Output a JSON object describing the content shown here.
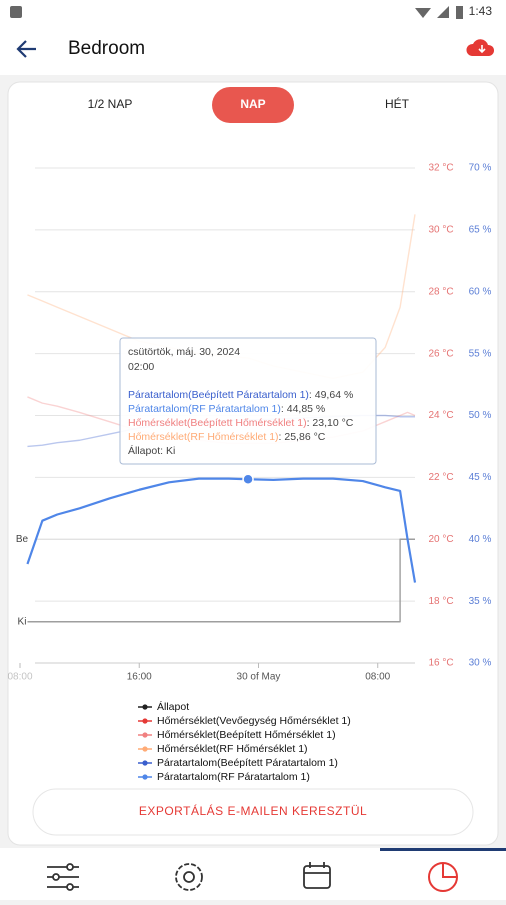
{
  "status": {
    "time": "1:43"
  },
  "header": {
    "title": "Bedroom"
  },
  "tabs": [
    {
      "label": "1/2 NAP",
      "active": false
    },
    {
      "label": "NAP",
      "active": true
    },
    {
      "label": "HÉT",
      "active": false
    }
  ],
  "chart_data": {
    "type": "line",
    "x": [
      8.5,
      9.5,
      10.5,
      12,
      14,
      16,
      18,
      20,
      22,
      23.3,
      25,
      27,
      29,
      31,
      32.5,
      33.5,
      34,
      34.5
    ],
    "xlim": [
      8,
      34.5
    ],
    "xticks": [
      {
        "value": 8,
        "label": "08:00"
      },
      {
        "value": 16,
        "label": "16:00"
      },
      {
        "value": 24,
        "label": "30 of May"
      },
      {
        "value": 32,
        "label": "08:00"
      }
    ],
    "ylim": [
      16,
      32
    ],
    "yticks": [
      {
        "value": 16,
        "label": "16 °C"
      },
      {
        "value": 18,
        "label": "18 °C"
      },
      {
        "value": 20,
        "label": "20 °C"
      },
      {
        "value": 22,
        "label": "22 °C"
      },
      {
        "value": 24,
        "label": "24 °C"
      },
      {
        "value": 26,
        "label": "26 °C"
      },
      {
        "value": 28,
        "label": "28 °C"
      },
      {
        "value": 30,
        "label": "30 °C"
      },
      {
        "value": 32,
        "label": "32 °C"
      }
    ],
    "y2lim": [
      30,
      70
    ],
    "y2ticks": [
      {
        "value": 30,
        "label": "30 %"
      },
      {
        "value": 35,
        "label": "35 %"
      },
      {
        "value": 40,
        "label": "40 %"
      },
      {
        "value": 45,
        "label": "45 %"
      },
      {
        "value": 50,
        "label": "50 %"
      },
      {
        "value": 55,
        "label": "55 %"
      },
      {
        "value": 60,
        "label": "60 %"
      },
      {
        "value": 65,
        "label": "65 %"
      },
      {
        "value": 70,
        "label": "70 %"
      }
    ],
    "y3lim": [
      -0.5,
      5.5
    ],
    "y3ticks": [
      {
        "value": 0,
        "label": "Ki"
      },
      {
        "value": 1,
        "label": "Be"
      }
    ],
    "grid": true,
    "series": [
      {
        "name": "Állapot",
        "color": "#222222",
        "axis": "y3",
        "step": true,
        "values": [
          0,
          0,
          0,
          0,
          0,
          0,
          0,
          0,
          0,
          0,
          0,
          0,
          0,
          0,
          0,
          1,
          1,
          1
        ]
      },
      {
        "name": "Hőmérséklet(Vevőegység Hőmérséklet 1)",
        "color": "#e53935",
        "axis": "y",
        "values": [
          null,
          null,
          null,
          null,
          null,
          null,
          null,
          null,
          null,
          null,
          null,
          null,
          null,
          null,
          null,
          null,
          null,
          null
        ]
      },
      {
        "name": "Hőmérséklet(Beépített Hőmérséklet 1)",
        "color": "#f08080",
        "axis": "y",
        "values": [
          24.6,
          24.4,
          24.3,
          24.1,
          23.8,
          23.5,
          23.3,
          23.2,
          23.1,
          23.1,
          23.1,
          23.2,
          23.3,
          23.5,
          23.8,
          24.0,
          24.1,
          24.0
        ]
      },
      {
        "name": "Hőmérséklet(RF Hőmérséklet 1)",
        "color": "#ffab76",
        "axis": "y",
        "values": [
          27.9,
          27.7,
          27.5,
          27.2,
          26.8,
          26.4,
          26.2,
          26.0,
          25.9,
          25.86,
          25.6,
          25.4,
          25.2,
          25.4,
          26.2,
          27.5,
          29,
          30.5
        ]
      },
      {
        "name": "Páratartalom(Beépített Páratartalom 1)",
        "color": "#3a5fcd",
        "axis": "y2",
        "values": [
          47.5,
          47.6,
          47.8,
          48,
          48.5,
          49,
          49.3,
          49.5,
          49.6,
          49.64,
          49.7,
          49.8,
          49.9,
          50,
          50,
          49.9,
          49.9,
          49.9
        ]
      },
      {
        "name": "Páratartalom(RF Páratartalom 1)",
        "color": "#4f86e8",
        "axis": "y2",
        "values": [
          38,
          41.5,
          42,
          42.5,
          43.3,
          44,
          44.6,
          44.9,
          44.9,
          44.85,
          44.8,
          44.9,
          44.9,
          44.7,
          44.2,
          43.9,
          40,
          36.5
        ]
      }
    ],
    "highlight": 9
  },
  "tooltip": {
    "date": "csütörtök, máj. 30, 2024",
    "time": "02:00",
    "lines": [
      {
        "label": "Páratartalom(Beépített Páratartalom 1)",
        "value": ": 49,64 %"
      },
      {
        "label": "Páratartalom(RF Páratartalom 1)",
        "value": ": 44,85 %"
      },
      {
        "label": "Hőmérséklet(Beépített Hőmérséklet 1)",
        "value": ": 23,10 °C"
      },
      {
        "label": "Hőmérséklet(RF Hőmérséklet 1)",
        "value": ": 25,86 °C"
      },
      {
        "label": "Állapot",
        "value": ": Ki"
      }
    ]
  },
  "export_button": "EXPORTÁLÁS E-MAILEN KERESZTÜL"
}
